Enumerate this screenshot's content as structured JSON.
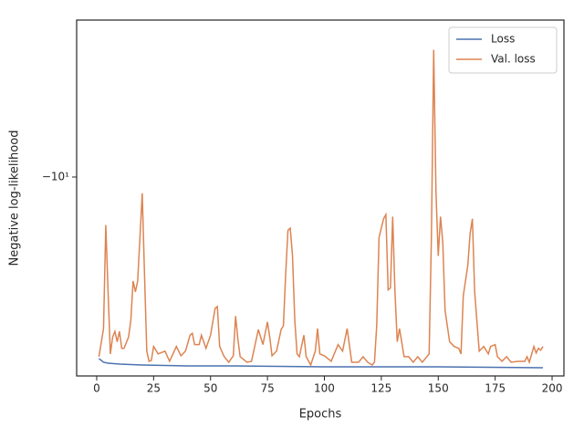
{
  "chart_data": {
    "type": "line",
    "x_label": "Epochs",
    "y_label": "Negative log-likelihood",
    "yscale": "symlog",
    "xlim": [
      -8.8,
      205.2
    ],
    "xticks": [
      0,
      25,
      50,
      75,
      100,
      125,
      150,
      175,
      200
    ],
    "ylim": [
      -12,
      -8.66
    ],
    "yticks": [
      {
        "value": -10,
        "label": "−10¹"
      }
    ],
    "legend": "upper right",
    "series": [
      {
        "name": "Loss",
        "color": "#4c72b0",
        "x": [
          1,
          3,
          5,
          10,
          20,
          40,
          60,
          100,
          150,
          196
        ],
        "values": [
          -11.81,
          -11.85,
          -11.86,
          -11.87,
          -11.88,
          -11.89,
          -11.89,
          -11.9,
          -11.9,
          -11.91
        ]
      },
      {
        "name": "Val. loss",
        "color": "#dd8452",
        "x": [
          1,
          3,
          4,
          5,
          6,
          7,
          8,
          9,
          10,
          11,
          12,
          14,
          15,
          16,
          17,
          18,
          19,
          20,
          21,
          22,
          23,
          24,
          25,
          27,
          30,
          32,
          35,
          37,
          39,
          41,
          42,
          43,
          45,
          46,
          48,
          50,
          52,
          53,
          54,
          56,
          58,
          60,
          61,
          62,
          63,
          66,
          68,
          71,
          73,
          75,
          76,
          77,
          79,
          81,
          82,
          83,
          84,
          85,
          86,
          87,
          88,
          89,
          91,
          92,
          94,
          96,
          97,
          98,
          100,
          103,
          106,
          108,
          110,
          112,
          115,
          117,
          119,
          121,
          122,
          123,
          124,
          126,
          127,
          128,
          129,
          130,
          131,
          132,
          133,
          135,
          137,
          139,
          141,
          143,
          146,
          147,
          148,
          149,
          150,
          151,
          152,
          153,
          155,
          157,
          159,
          160,
          161,
          163,
          164,
          165,
          166,
          168,
          170,
          172,
          173,
          175,
          176,
          178,
          180,
          182,
          185,
          188,
          189,
          190,
          192,
          193,
          194,
          195,
          196
        ],
        "values": [
          -11.79,
          -11.49,
          -10.45,
          -11.11,
          -11.76,
          -11.58,
          -11.52,
          -11.63,
          -11.52,
          -11.7,
          -11.7,
          -11.58,
          -11.4,
          -11.0,
          -11.11,
          -11.0,
          -10.57,
          -10.15,
          -10.93,
          -11.73,
          -11.84,
          -11.83,
          -11.68,
          -11.76,
          -11.73,
          -11.84,
          -11.68,
          -11.78,
          -11.73,
          -11.56,
          -11.54,
          -11.66,
          -11.66,
          -11.56,
          -11.7,
          -11.56,
          -11.28,
          -11.26,
          -11.68,
          -11.79,
          -11.85,
          -11.78,
          -11.36,
          -11.6,
          -11.79,
          -11.85,
          -11.84,
          -11.5,
          -11.66,
          -11.42,
          -11.58,
          -11.78,
          -11.73,
          -11.5,
          -11.46,
          -10.93,
          -10.5,
          -10.48,
          -10.75,
          -11.4,
          -11.76,
          -11.79,
          -11.56,
          -11.79,
          -11.88,
          -11.73,
          -11.49,
          -11.76,
          -11.78,
          -11.84,
          -11.66,
          -11.73,
          -11.49,
          -11.85,
          -11.85,
          -11.79,
          -11.85,
          -11.88,
          -11.85,
          -11.45,
          -10.57,
          -10.39,
          -10.35,
          -11.09,
          -11.07,
          -10.37,
          -11.11,
          -11.63,
          -11.49,
          -11.79,
          -11.79,
          -11.85,
          -11.79,
          -11.85,
          -11.76,
          -10.57,
          -8.9,
          -10.13,
          -10.75,
          -10.37,
          -10.62,
          -11.3,
          -11.63,
          -11.68,
          -11.7,
          -11.76,
          -11.15,
          -10.84,
          -10.53,
          -10.39,
          -11.11,
          -11.73,
          -11.68,
          -11.76,
          -11.68,
          -11.66,
          -11.79,
          -11.84,
          -11.79,
          -11.85,
          -11.84,
          -11.84,
          -11.79,
          -11.85,
          -11.68,
          -11.75,
          -11.7,
          -11.72,
          -11.68
        ]
      }
    ]
  }
}
